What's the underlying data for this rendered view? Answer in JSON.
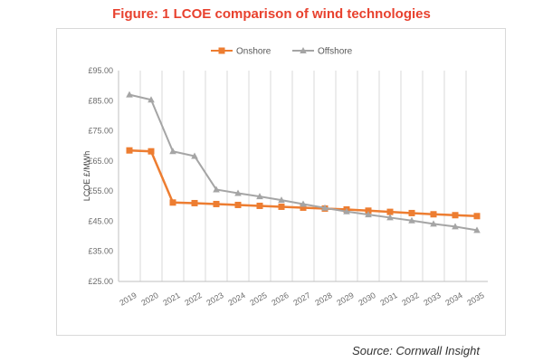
{
  "figure": {
    "title": "Figure: 1 LCOE comparison of wind technologies",
    "source": "Source: Cornwall Insight"
  },
  "colors": {
    "title": "#e8412e",
    "onshore": "#ed7d31",
    "offshore": "#a5a5a5",
    "gridline": "#d9d9d9"
  },
  "chart_data": {
    "type": "line",
    "title": "",
    "xlabel": "",
    "ylabel": "LCOE £/MWh",
    "ylim": [
      25,
      95
    ],
    "yticks": [
      "£25.00",
      "£35.00",
      "£45.00",
      "£55.00",
      "£65.00",
      "£75.00",
      "£85.00",
      "£95.00"
    ],
    "x": [
      "2019",
      "2020",
      "2021",
      "2022",
      "2023",
      "2024",
      "2025",
      "2026",
      "2027",
      "2028",
      "2029",
      "2030",
      "2031",
      "2032",
      "2033",
      "2034",
      "2035"
    ],
    "legend_position": "top",
    "grid": "vertical",
    "series": [
      {
        "name": "Onshore",
        "marker": "square",
        "values": [
          68.5,
          68.2,
          51.2,
          51.0,
          50.7,
          50.4,
          50.1,
          49.8,
          49.5,
          49.2,
          48.9,
          48.5,
          48.1,
          47.7,
          47.3,
          47.0,
          46.7
        ]
      },
      {
        "name": "Offshore",
        "marker": "triangle",
        "values": [
          87.0,
          85.3,
          68.2,
          66.6,
          55.5,
          54.3,
          53.2,
          52.0,
          50.7,
          49.4,
          48.2,
          47.2,
          46.2,
          45.2,
          44.1,
          43.2,
          42.0
        ]
      }
    ]
  }
}
